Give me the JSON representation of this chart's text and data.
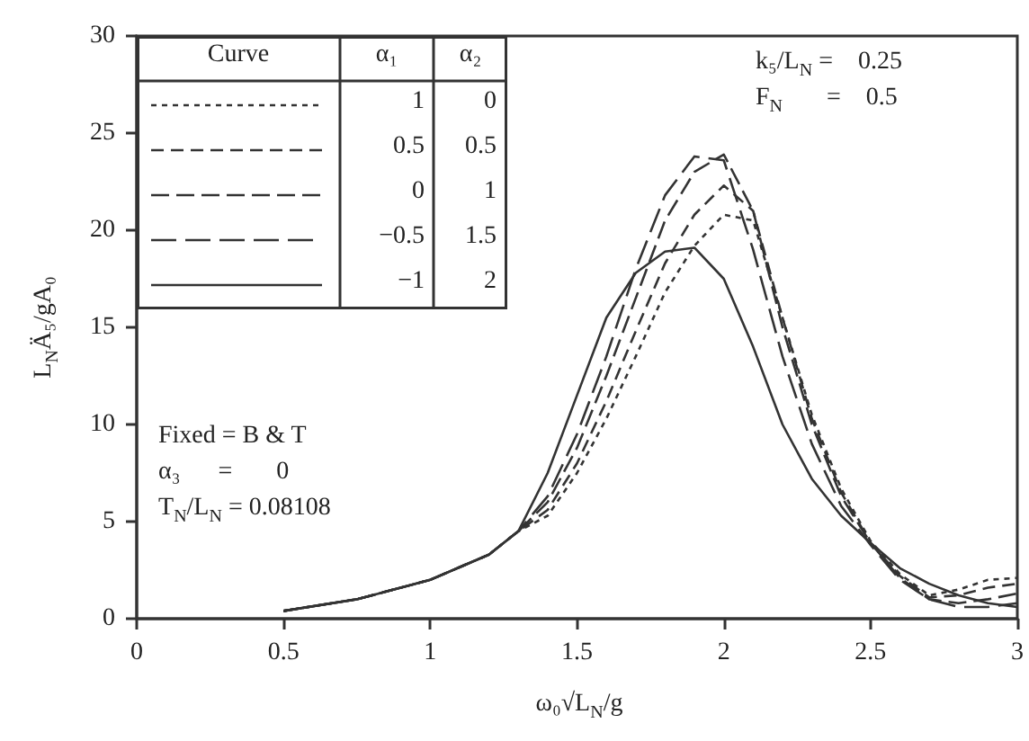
{
  "chart_data": {
    "type": "line",
    "xlabel": "ω₀√L$_{N}$/g",
    "ylabel": "L$_{N}$Ä₅/gA₀",
    "x": [
      0.5,
      0.75,
      1.0,
      1.2,
      1.3,
      1.4,
      1.5,
      1.6,
      1.7,
      1.8,
      1.9,
      2.0,
      2.1,
      2.2,
      2.3,
      2.4,
      2.5,
      2.6,
      2.7,
      2.8,
      2.9,
      3.0
    ],
    "series": [
      {
        "color": "#333333",
        "line_style": "dashed",
        "values": [
          0.4,
          1.0,
          2.0,
          3.3,
          4.5,
          5.3,
          7.5,
          10.3,
          13.5,
          16.8,
          19.2,
          20.8,
          20.5,
          15.5,
          10.5,
          6.7,
          4.0,
          2.3,
          1.2,
          1.5,
          2.0,
          2.1
        ]
      },
      {
        "color": "#333333",
        "line_style": "dashed",
        "values": [
          0.4,
          1.0,
          2.0,
          3.3,
          4.5,
          5.6,
          8.0,
          11.2,
          14.8,
          18.3,
          20.8,
          22.3,
          21.0,
          15.5,
          10.3,
          6.5,
          3.9,
          2.2,
          1.1,
          1.2,
          1.6,
          1.8
        ]
      },
      {
        "color": "#333333",
        "line_style": "dashed",
        "values": [
          0.4,
          1.0,
          2.0,
          3.3,
          4.5,
          6.0,
          8.8,
          12.5,
          16.5,
          20.5,
          23.0,
          23.9,
          21.0,
          15.0,
          10.0,
          6.3,
          3.9,
          2.1,
          1.0,
          0.8,
          1.0,
          1.3
        ]
      },
      {
        "color": "#333333",
        "line_style": "dashed",
        "values": [
          0.4,
          1.0,
          2.0,
          3.3,
          4.5,
          6.3,
          9.5,
          13.5,
          18.0,
          21.8,
          23.8,
          23.6,
          19.0,
          13.5,
          9.0,
          5.8,
          3.8,
          2.0,
          1.0,
          0.6,
          0.6,
          0.8
        ]
      },
      {
        "color": "#333333",
        "line_style": "solid",
        "values": [
          0.4,
          1.0,
          2.0,
          3.3,
          4.5,
          7.5,
          11.5,
          15.5,
          17.8,
          18.9,
          19.1,
          17.5,
          14.0,
          10.0,
          7.2,
          5.3,
          3.9,
          2.6,
          1.8,
          1.2,
          0.8,
          0.6
        ]
      }
    ],
    "xlim": [
      0,
      3
    ],
    "xticks": [
      0,
      0.5,
      1,
      1.5,
      2,
      2.5,
      3
    ],
    "ylim": [
      0,
      30
    ],
    "yticks": [
      0,
      5,
      10,
      15,
      20,
      25,
      30
    ],
    "grid": false,
    "marker": "none",
    "annotations": [
      "Curve",
      "α₁",
      "α₂",
      "1",
      "0",
      "0.5",
      "0.5",
      "0",
      "1",
      "−0.5",
      "1.5",
      "−1",
      "2",
      "k₅/L$_{N}$ =    0.25",
      "F$_{N}$       =    0.5",
      "Fixed = B & T",
      "α₃      =       0",
      "T$_{N}$/L$_{N}$ = 0.08108"
    ]
  }
}
